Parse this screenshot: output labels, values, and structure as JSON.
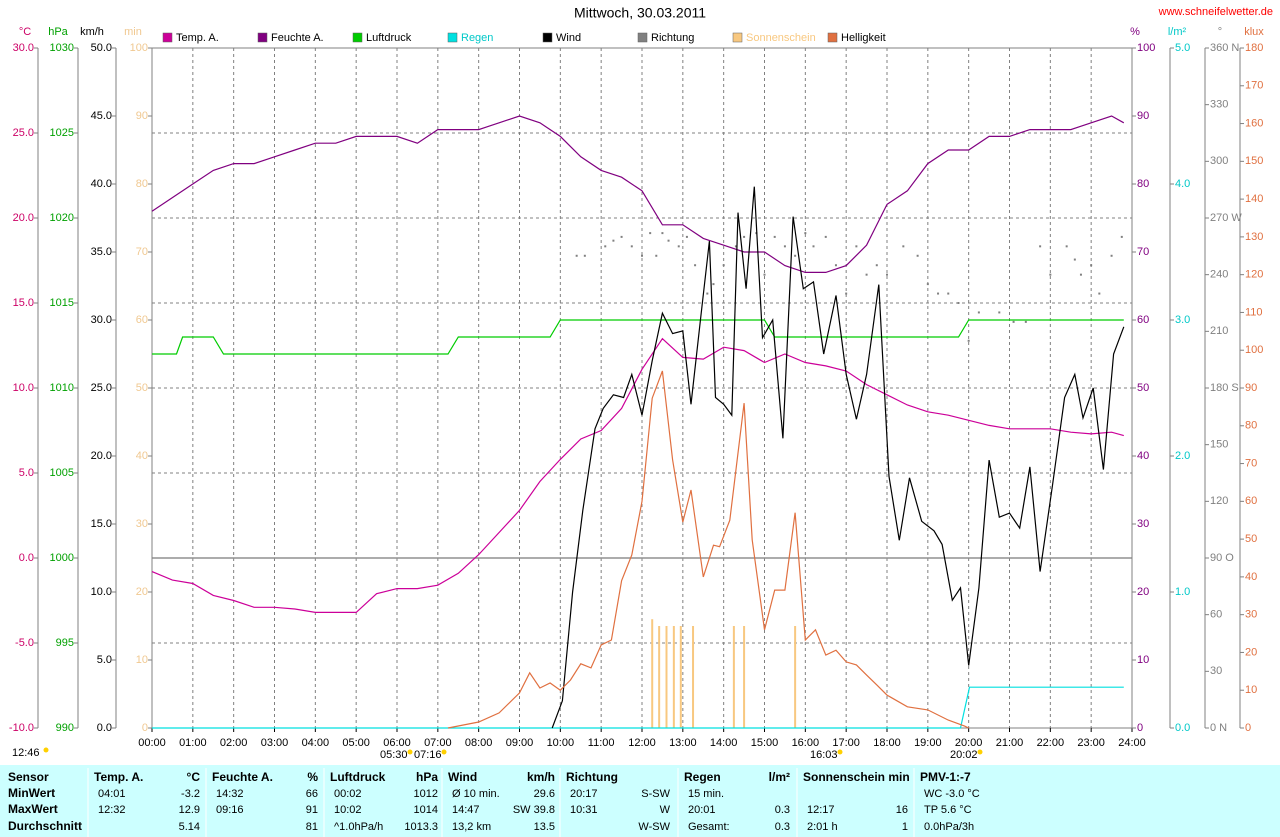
{
  "chart_data": {
    "type": "line",
    "title": "Mittwoch, 30.03.2011",
    "source": "www.schneifelwetter.de",
    "annotations": [
      "12:46",
      "05:30",
      "07:16",
      "16:03",
      "20:02"
    ],
    "xlim": [
      0,
      24
    ],
    "xticks": [
      {
        "value": 0,
        "label": "00:00"
      },
      {
        "value": 1,
        "label": "01:00"
      },
      {
        "value": 2,
        "label": "02:00"
      },
      {
        "value": 3,
        "label": "03:00"
      },
      {
        "value": 4,
        "label": "04:00"
      },
      {
        "value": 5,
        "label": "05:00"
      },
      {
        "value": 6,
        "label": "06:00"
      },
      {
        "value": 7,
        "label": "07:00"
      },
      {
        "value": 8,
        "label": "08:00"
      },
      {
        "value": 9,
        "label": "09:00"
      },
      {
        "value": 10,
        "label": "10:00"
      },
      {
        "value": 11,
        "label": "11:00"
      },
      {
        "value": 12,
        "label": "12:00"
      },
      {
        "value": 13,
        "label": "13:00"
      },
      {
        "value": 14,
        "label": "14:00"
      },
      {
        "value": 15,
        "label": "15:00"
      },
      {
        "value": 16,
        "label": "16:00"
      },
      {
        "value": 17,
        "label": "17:00"
      },
      {
        "value": 18,
        "label": "18:00"
      },
      {
        "value": 19,
        "label": "19:00"
      },
      {
        "value": 20,
        "label": "20:00"
      },
      {
        "value": 21,
        "label": "21:00"
      },
      {
        "value": 22,
        "label": "22:00"
      },
      {
        "value": 23,
        "label": "23:00"
      },
      {
        "value": 24,
        "label": "24:00"
      }
    ],
    "grid": true,
    "axes": [
      {
        "unit": "°C",
        "color": "#cc0066",
        "lim": [
          -10,
          30
        ],
        "ticks": [
          {
            "value": -10,
            "label": "-10.0"
          },
          {
            "value": -5,
            "label": "-5.0"
          },
          {
            "value": 0,
            "label": "0.0"
          },
          {
            "value": 5,
            "label": "5.0"
          },
          {
            "value": 10,
            "label": "10.0"
          },
          {
            "value": 15,
            "label": "15.0"
          },
          {
            "value": 20,
            "label": "20.0"
          },
          {
            "value": 25,
            "label": "25.0"
          },
          {
            "value": 30,
            "label": "30.0"
          }
        ]
      },
      {
        "unit": "hPa",
        "color": "#00a000",
        "lim": [
          990,
          1030
        ],
        "ticks": [
          990,
          995,
          1000,
          1005,
          1010,
          1015,
          1020,
          1025,
          1030
        ]
      },
      {
        "unit": "km/h",
        "color": "#000000",
        "lim": [
          0,
          50
        ],
        "ticks": [
          {
            "value": 0,
            "label": "0.0"
          },
          {
            "value": 5,
            "label": "5.0"
          },
          {
            "value": 10,
            "label": "10.0"
          },
          {
            "value": 15,
            "label": "15.0"
          },
          {
            "value": 20,
            "label": "20.0"
          },
          {
            "value": 25,
            "label": "25.0"
          },
          {
            "value": 30,
            "label": "30.0"
          },
          {
            "value": 35,
            "label": "35.0"
          },
          {
            "value": 40,
            "label": "40.0"
          },
          {
            "value": 45,
            "label": "45.0"
          },
          {
            "value": 50,
            "label": "50.0"
          }
        ]
      },
      {
        "unit": "min",
        "color": "#f0c890",
        "lim": [
          0,
          100
        ],
        "ticks": [
          0,
          10,
          20,
          30,
          40,
          50,
          60,
          70,
          80,
          90,
          100
        ]
      },
      {
        "unit": "%",
        "color": "#800080",
        "lim": [
          0,
          100
        ],
        "ticks": [
          0,
          10,
          20,
          30,
          40,
          50,
          60,
          70,
          80,
          90,
          100
        ]
      },
      {
        "unit": "l/m²",
        "color": "#00c8c8",
        "lim": [
          0,
          5
        ],
        "ticks": [
          {
            "value": 0,
            "label": "0.0"
          },
          {
            "value": 1,
            "label": "1.0"
          },
          {
            "value": 2,
            "label": "2.0"
          },
          {
            "value": 3,
            "label": "3.0"
          },
          {
            "value": 4,
            "label": "4.0"
          },
          {
            "value": 5,
            "label": "5.0"
          }
        ]
      },
      {
        "unit": "°",
        "color": "#808080",
        "lim": [
          0,
          360
        ],
        "ticks": [
          {
            "value": 0,
            "label": "0 N"
          },
          30,
          60,
          {
            "value": 90,
            "label": "90 O"
          },
          120,
          150,
          {
            "value": 180,
            "label": "180 S"
          },
          210,
          240,
          {
            "value": 270,
            "label": "270 W"
          },
          300,
          330,
          {
            "value": 360,
            "label": "360 N"
          }
        ]
      },
      {
        "unit": "klux",
        "color": "#e07040",
        "lim": [
          0,
          180
        ],
        "ticks": [
          0,
          10,
          20,
          30,
          40,
          50,
          60,
          70,
          80,
          90,
          100,
          110,
          120,
          130,
          140,
          150,
          160,
          170,
          180
        ]
      }
    ],
    "series": [
      {
        "name": "Temp. A.",
        "color": "#cc0099",
        "type": "line",
        "axis": 0,
        "x": [
          0,
          0.5,
          1,
          1.5,
          2,
          2.5,
          3,
          3.5,
          4,
          4.5,
          5,
          5.5,
          6,
          6.5,
          7,
          7.5,
          8,
          8.5,
          9,
          9.5,
          10,
          10.5,
          11,
          11.5,
          12,
          12.5,
          13,
          13.5,
          14,
          14.5,
          15,
          15.5,
          16,
          16.5,
          17,
          17.5,
          18,
          18.5,
          19,
          19.5,
          20,
          20.5,
          21,
          21.5,
          22,
          22.5,
          23,
          23.5,
          23.8
        ],
        "values": [
          -0.8,
          -1.3,
          -1.5,
          -2.2,
          -2.5,
          -2.9,
          -2.9,
          -3.0,
          -3.2,
          -3.2,
          -3.2,
          -2.1,
          -1.8,
          -1.8,
          -1.6,
          -0.9,
          0.2,
          1.5,
          2.8,
          4.5,
          5.8,
          7.0,
          7.5,
          8.8,
          11.1,
          12.9,
          11.8,
          11.7,
          12.4,
          12.2,
          11.5,
          12.0,
          11.5,
          11.3,
          11.0,
          10.2,
          9.6,
          9.0,
          8.6,
          8.4,
          8.1,
          7.8,
          7.6,
          7.6,
          7.6,
          7.4,
          7.3,
          7.4,
          7.2
        ]
      },
      {
        "name": "Feuchte A.",
        "color": "#800080",
        "type": "line",
        "axis": 4,
        "x": [
          0,
          0.5,
          1,
          1.5,
          2,
          2.5,
          3,
          3.5,
          4,
          4.5,
          5,
          5.5,
          6,
          6.5,
          7,
          7.5,
          8,
          8.5,
          9,
          9.5,
          10,
          10.5,
          11,
          11.5,
          12,
          12.5,
          13,
          13.5,
          14,
          14.5,
          15,
          15.5,
          16,
          16.5,
          17,
          17.5,
          18,
          18.5,
          19,
          19.5,
          20,
          20.5,
          21,
          21.5,
          22,
          22.5,
          23,
          23.5,
          23.8
        ],
        "values": [
          76,
          78,
          80,
          82,
          83,
          83,
          84,
          85,
          86,
          86,
          87,
          87,
          87,
          86,
          88,
          88,
          88,
          89,
          90,
          89,
          87,
          84,
          82,
          81,
          79,
          74,
          74,
          72,
          71,
          70,
          70,
          68,
          67,
          67,
          68,
          71,
          77,
          79,
          83,
          85,
          85,
          87,
          87,
          88,
          88,
          88,
          89,
          90,
          89
        ]
      },
      {
        "name": "Luftdruck",
        "color": "#00cc00",
        "type": "line",
        "axis": 1,
        "x": [
          0,
          0.6,
          0.75,
          1.5,
          1.75,
          7.25,
          7.5,
          9.75,
          10,
          15,
          15.25,
          19.75,
          20,
          23.8
        ],
        "values": [
          1012,
          1012,
          1013,
          1013,
          1012,
          1012,
          1013,
          1013,
          1014,
          1014,
          1013,
          1013,
          1014,
          1014
        ]
      },
      {
        "name": "Regen",
        "color": "#00e0e0",
        "type": "line",
        "axis": 5,
        "x": [
          0,
          19.8,
          20.02,
          23.8
        ],
        "values": [
          0,
          0,
          0.3,
          0.3
        ]
      },
      {
        "name": "Wind",
        "color": "#000000",
        "type": "line",
        "axis": 2,
        "x": [
          9.8,
          10.05,
          10.3,
          10.55,
          10.85,
          11.05,
          11.3,
          11.55,
          11.75,
          12.0,
          12.25,
          12.5,
          12.75,
          13.0,
          13.2,
          13.45,
          13.65,
          13.8,
          14.0,
          14.2,
          14.35,
          14.55,
          14.75,
          14.95,
          15.2,
          15.45,
          15.7,
          15.95,
          16.2,
          16.45,
          16.75,
          17.0,
          17.25,
          17.5,
          17.8,
          18.05,
          18.3,
          18.55,
          18.85,
          19.15,
          19.35,
          19.6,
          19.8,
          20.0,
          20.25,
          20.5,
          20.75,
          21.0,
          21.25,
          21.5,
          21.75,
          22.05,
          22.35,
          22.6,
          22.8,
          23.05,
          23.3,
          23.55,
          23.8
        ],
        "values": [
          0,
          2,
          10,
          16,
          22,
          23.5,
          24.5,
          24.3,
          26,
          23,
          27,
          30.5,
          29,
          29.2,
          23.8,
          30.5,
          35.8,
          24.3,
          23.8,
          23,
          37.9,
          32.3,
          39.8,
          28.7,
          30,
          21.3,
          37.6,
          32.3,
          32.8,
          27.5,
          31.8,
          26,
          22.7,
          26,
          32.6,
          18.5,
          13.8,
          18.4,
          15.2,
          14.5,
          13.5,
          9.4,
          10.3,
          4.6,
          10.3,
          19.7,
          15.5,
          15.8,
          14.7,
          19.2,
          11.5,
          17.8,
          24.3,
          26,
          22.8,
          25,
          19,
          27.5,
          29.5
        ]
      },
      {
        "name": "Richtung",
        "color": "#808080",
        "type": "dots",
        "axis": 6,
        "x": [
          10.4,
          10.6,
          11.1,
          11.3,
          11.5,
          11.75,
          12,
          12.2,
          12.35,
          12.5,
          12.65,
          12.9,
          13.1,
          13.3,
          13.6,
          13.75,
          14,
          14.3,
          14.5,
          14.8,
          15,
          15.25,
          15.5,
          15.75,
          16,
          16.2,
          16.5,
          16.75,
          17,
          17.25,
          17.5,
          17.75,
          18,
          18.4,
          18.75,
          19,
          19.25,
          19.5,
          19.75,
          20,
          20.25,
          20.75,
          21.1,
          21.4,
          21.75,
          22,
          22.4,
          22.6,
          22.75,
          23,
          23.2,
          23.5,
          23.75
        ],
        "values": [
          250,
          250,
          255,
          258,
          260,
          255,
          250,
          262,
          250,
          262,
          258,
          255,
          260,
          245,
          230,
          235,
          245,
          255,
          260,
          262,
          240,
          260,
          255,
          250,
          262,
          255,
          260,
          245,
          230,
          255,
          240,
          245,
          240,
          255,
          250,
          235,
          230,
          230,
          225,
          205,
          220,
          220,
          215,
          215,
          255,
          240,
          255,
          248,
          240,
          245,
          230,
          250,
          260
        ]
      },
      {
        "name": "Sonnenschein",
        "color": "#f8c880",
        "type": "bars",
        "axis": 3,
        "x": [
          12.25,
          12.42,
          12.6,
          12.78,
          12.95,
          13.25,
          14.25,
          14.5,
          15.75
        ],
        "values": [
          16,
          15,
          15,
          15,
          15,
          15,
          15,
          15,
          15
        ]
      },
      {
        "name": "Helligkeit",
        "color": "#e07040",
        "type": "line",
        "axis": 7,
        "x": [
          7.25,
          8,
          8.5,
          9,
          9.25,
          9.5,
          9.75,
          10,
          10.25,
          10.5,
          10.75,
          11,
          11.25,
          11.5,
          11.75,
          12,
          12.25,
          12.5,
          12.75,
          13,
          13.2,
          13.5,
          13.75,
          13.9,
          14.15,
          14.5,
          14.7,
          15,
          15.25,
          15.5,
          15.75,
          16,
          16.25,
          16.5,
          16.75,
          17,
          17.25,
          17.5,
          17.75,
          18,
          18.5,
          19,
          19.5,
          19.9,
          20
        ],
        "values": [
          0,
          1.6,
          4,
          9.3,
          14.6,
          10.6,
          11.9,
          10,
          12.7,
          17,
          15.9,
          22,
          23.3,
          39,
          45.8,
          60,
          87.3,
          94.5,
          71,
          54.5,
          63,
          40,
          48.4,
          48,
          55,
          86,
          49.8,
          26,
          36.5,
          36.5,
          57,
          23.3,
          26,
          19.3,
          20.6,
          17.5,
          16.7,
          14,
          11.4,
          8.7,
          5.6,
          4.8,
          2.1,
          0.5,
          0
        ]
      }
    ]
  },
  "table": {
    "columns": [
      {
        "title": "Sensor",
        "rows": [
          {
            "left": "MinWert"
          },
          {
            "left": "MaxWert"
          },
          {
            "left": "Durchschnitt"
          }
        ]
      },
      {
        "title": "Temp. A.",
        "unit": "°C",
        "rows": [
          {
            "left": "04:01",
            "right": "-3.2"
          },
          {
            "left": "12:32",
            "right": "12.9"
          },
          {
            "right": "5.14"
          }
        ]
      },
      {
        "title": "Feuchte A.",
        "unit": "%",
        "rows": [
          {
            "left": "14:32",
            "right": "66"
          },
          {
            "left": "09:16",
            "right": "91"
          },
          {
            "right": "81"
          }
        ]
      },
      {
        "title": "Luftdruck",
        "unit": "hPa",
        "rows": [
          {
            "left": "00:02",
            "right": "1012"
          },
          {
            "left": "10:02",
            "right": "1014"
          },
          {
            "left": "^1.0hPa/h",
            "right": "1013.3"
          }
        ]
      },
      {
        "title": "Wind",
        "unit": "km/h",
        "rows": [
          {
            "left": "Ø 10 min.",
            "right": "29.6"
          },
          {
            "left": "14:47",
            "right": "SW 39.8"
          },
          {
            "left": "13,2 km",
            "right": "13.5"
          }
        ]
      },
      {
        "title": "Richtung",
        "rows": [
          {
            "left": "20:17",
            "right": "S-SW"
          },
          {
            "left": "10:31",
            "right": "W"
          },
          {
            "right": "W-SW"
          }
        ]
      },
      {
        "title": "Regen",
        "unit": "l/m²",
        "rows": [
          {
            "left": "15 min."
          },
          {
            "left": "20:01",
            "right": "0.3"
          },
          {
            "left": "Gesamt:",
            "right": "0.3"
          }
        ]
      },
      {
        "title": "Sonnenschein min",
        "rows": [
          {},
          {
            "left": "12:17",
            "right": "16"
          },
          {
            "left": "2:01 h",
            "right": "1"
          }
        ]
      },
      {
        "title": "PMV-1:-7",
        "rows": [
          {
            "left": "WC -3.0 °C"
          },
          {
            "left": "TP 5.6 °C"
          },
          {
            "left": "0.0hPa/3h"
          }
        ]
      }
    ]
  }
}
